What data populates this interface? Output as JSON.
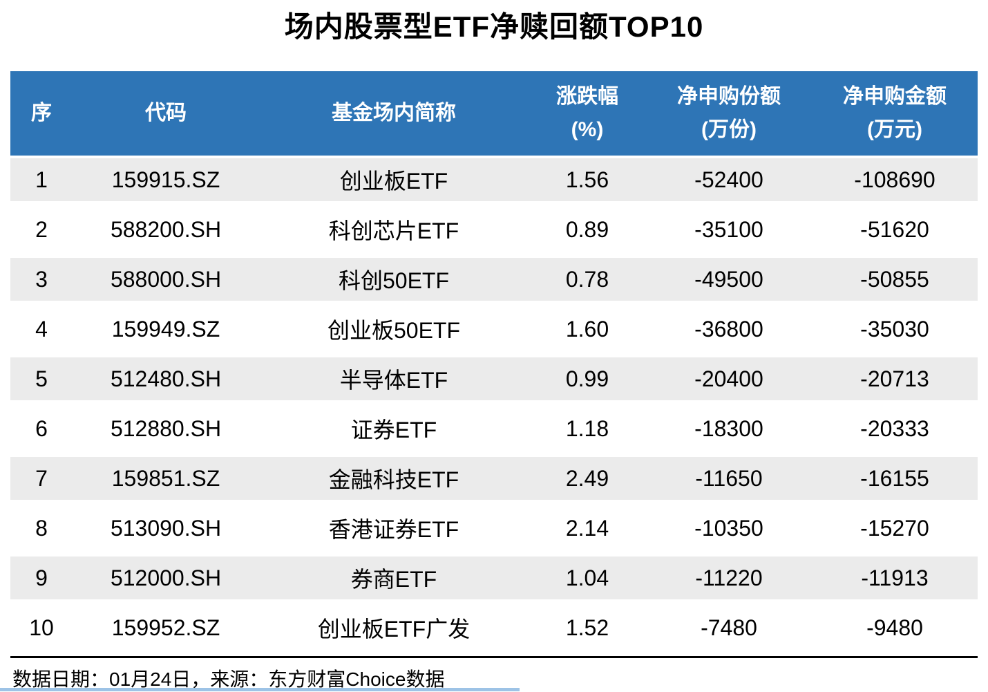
{
  "title": "场内股票型ETF净赎回额TOP10",
  "colors": {
    "header_bg": "#2E75B6",
    "header_text": "#FFFFFF",
    "stripe_row_bg": "#EBEBEB",
    "footer_rule": "#000000",
    "bottom_accent_line": "#9DC3E6"
  },
  "columns": [
    {
      "l1": "序",
      "l2": ""
    },
    {
      "l1": "代码",
      "l2": ""
    },
    {
      "l1": "基金场内简称",
      "l2": ""
    },
    {
      "l1": "涨跌幅",
      "l2": "(%)"
    },
    {
      "l1": "净申购份额",
      "l2": "(万份)"
    },
    {
      "l1": "净申购金额",
      "l2": "(万元)"
    }
  ],
  "rows": [
    {
      "rank": "1",
      "code": "159915.SZ",
      "name": "创业板ETF",
      "chg": "1.56",
      "shares": "-52400",
      "amount": "-108690"
    },
    {
      "rank": "2",
      "code": "588200.SH",
      "name": "科创芯片ETF",
      "chg": "0.89",
      "shares": "-35100",
      "amount": "-51620"
    },
    {
      "rank": "3",
      "code": "588000.SH",
      "name": "科创50ETF",
      "chg": "0.78",
      "shares": "-49500",
      "amount": "-50855"
    },
    {
      "rank": "4",
      "code": "159949.SZ",
      "name": "创业板50ETF",
      "chg": "1.60",
      "shares": "-36800",
      "amount": "-35030"
    },
    {
      "rank": "5",
      "code": "512480.SH",
      "name": "半导体ETF",
      "chg": "0.99",
      "shares": "-20400",
      "amount": "-20713"
    },
    {
      "rank": "6",
      "code": "512880.SH",
      "name": "证券ETF",
      "chg": "1.18",
      "shares": "-18300",
      "amount": "-20333"
    },
    {
      "rank": "7",
      "code": "159851.SZ",
      "name": "金融科技ETF",
      "chg": "2.49",
      "shares": "-11650",
      "amount": "-16155"
    },
    {
      "rank": "8",
      "code": "513090.SH",
      "name": "香港证券ETF",
      "chg": "2.14",
      "shares": "-10350",
      "amount": "-15270"
    },
    {
      "rank": "9",
      "code": "512000.SH",
      "name": "券商ETF",
      "chg": "1.04",
      "shares": "-11220",
      "amount": "-11913"
    },
    {
      "rank": "10",
      "code": "159952.SZ",
      "name": "创业板ETF广发",
      "chg": "1.52",
      "shares": "-7480",
      "amount": "-9480"
    }
  ],
  "footer": {
    "note": "数据日期：01月24日，来源：东方财富Choice数据"
  },
  "chart_data": {
    "type": "table",
    "title": "场内股票型ETF净赎回额TOP10",
    "columns": [
      "序",
      "代码",
      "基金场内简称",
      "涨跌幅(%)",
      "净申购份额(万份)",
      "净申购金额(万元)"
    ],
    "rows": [
      [
        1,
        "159915.SZ",
        "创业板ETF",
        1.56,
        -52400,
        -108690
      ],
      [
        2,
        "588200.SH",
        "科创芯片ETF",
        0.89,
        -35100,
        -51620
      ],
      [
        3,
        "588000.SH",
        "科创50ETF",
        0.78,
        -49500,
        -50855
      ],
      [
        4,
        "159949.SZ",
        "创业板50ETF",
        1.6,
        -36800,
        -35030
      ],
      [
        5,
        "512480.SH",
        "半导体ETF",
        0.99,
        -20400,
        -20713
      ],
      [
        6,
        "512880.SH",
        "证券ETF",
        1.18,
        -18300,
        -20333
      ],
      [
        7,
        "159851.SZ",
        "金融科技ETF",
        2.49,
        -11650,
        -16155
      ],
      [
        8,
        "513090.SH",
        "香港证券ETF",
        2.14,
        -10350,
        -15270
      ],
      [
        9,
        "512000.SH",
        "券商ETF",
        1.04,
        -11220,
        -11913
      ],
      [
        10,
        "159952.SZ",
        "创业板ETF广发",
        1.52,
        -7480,
        -9480
      ]
    ],
    "source_note": "数据日期：01月24日，来源：东方财富Choice数据"
  }
}
